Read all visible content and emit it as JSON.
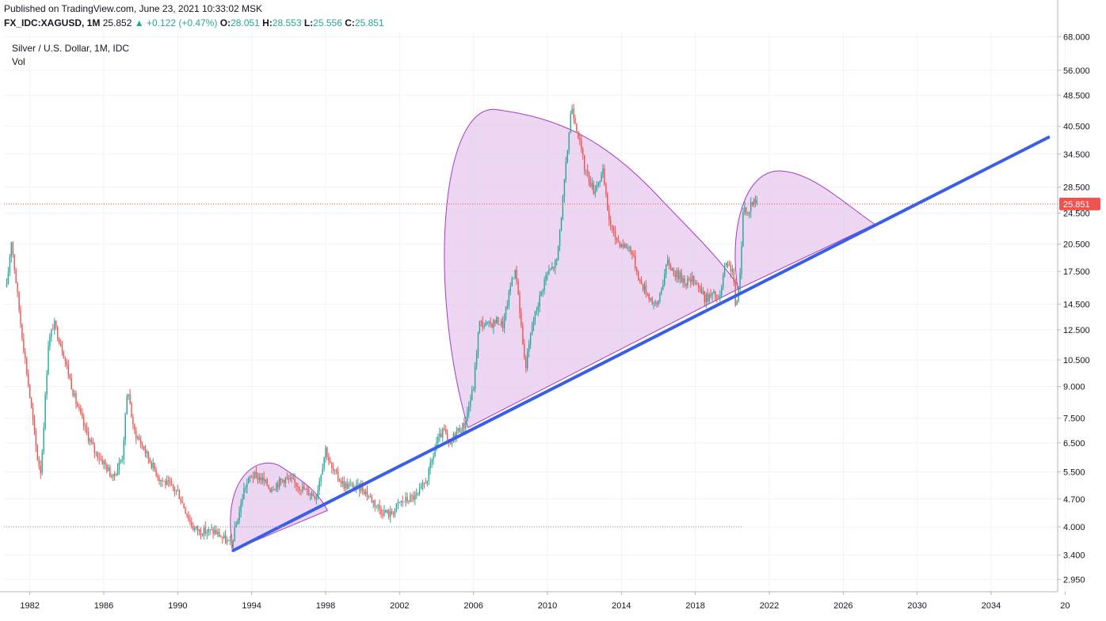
{
  "header": {
    "published": "Published on TradingView.com, June 23, 2021 10:33:02 MSK",
    "symbol": "FX_IDC:XAGUSD, 1M",
    "last": "25.852",
    "change": "+0.122 (+0.47%)",
    "o_label": "O:",
    "o_value": "28.051",
    "h_label": "H:",
    "h_value": "28.553",
    "l_label": "L:",
    "l_value": "25.556",
    "c_label": "C:",
    "c_value": "25.851"
  },
  "legend": {
    "title": "Silver / U.S. Dollar, 1M, IDC",
    "volume": "Vol"
  },
  "colors": {
    "up": "#26a69a",
    "down": "#ef5350",
    "trendline": "#3a5ee8",
    "pattern_fill": "#e6c8ec",
    "pattern_stroke": "#a33cc1",
    "price_label_bg": "#ef5350"
  },
  "chart_data": {
    "type": "candlestick",
    "scale": "log",
    "ylim": [
      2.75,
      70
    ],
    "xlim": [
      1980.6,
      2037.6
    ],
    "y_ticks": [
      "68.000",
      "56.000",
      "48.500",
      "40.500",
      "34.500",
      "28.500",
      "24.500",
      "20.500",
      "17.500",
      "14.500",
      "12.500",
      "10.500",
      "9.000",
      "7.500",
      "6.500",
      "5.500",
      "4.700",
      "4.000",
      "3.400",
      "2.950"
    ],
    "x_ticks": [
      "1982",
      "1986",
      "1990",
      "1994",
      "1998",
      "2002",
      "2006",
      "2010",
      "2014",
      "2018",
      "2022",
      "2026",
      "2030",
      "2034",
      "20"
    ],
    "current_price": "25.851",
    "keypoints": [
      [
        1980.75,
        16.0
      ],
      [
        1981.0,
        21.0
      ],
      [
        1981.5,
        13.0
      ],
      [
        1982.0,
        8.5
      ],
      [
        1982.4,
        6.0
      ],
      [
        1982.6,
        5.5
      ],
      [
        1983.0,
        11.5
      ],
      [
        1983.3,
        13.0
      ],
      [
        1983.8,
        11.0
      ],
      [
        1984.4,
        8.5
      ],
      [
        1985.0,
        7.0
      ],
      [
        1985.5,
        6.2
      ],
      [
        1986.0,
        5.8
      ],
      [
        1986.5,
        5.3
      ],
      [
        1987.0,
        6.0
      ],
      [
        1987.3,
        9.0
      ],
      [
        1987.6,
        7.0
      ],
      [
        1988.0,
        6.5
      ],
      [
        1989.0,
        5.3
      ],
      [
        1990.0,
        4.9
      ],
      [
        1990.8,
        4.0
      ],
      [
        1991.2,
        3.9
      ],
      [
        1992.0,
        3.9
      ],
      [
        1992.9,
        3.6
      ],
      [
        1993.3,
        4.3
      ],
      [
        1993.6,
        5.0
      ],
      [
        1994.0,
        5.4
      ],
      [
        1994.5,
        5.3
      ],
      [
        1995.0,
        5.0
      ],
      [
        1995.8,
        5.3
      ],
      [
        1996.5,
        5.1
      ],
      [
        1997.0,
        4.9
      ],
      [
        1997.5,
        4.8
      ],
      [
        1998.0,
        6.3
      ],
      [
        1998.3,
        5.6
      ],
      [
        1999.0,
        5.1
      ],
      [
        2000.0,
        5.0
      ],
      [
        2001.0,
        4.4
      ],
      [
        2001.5,
        4.3
      ],
      [
        2002.0,
        4.6
      ],
      [
        2003.0,
        4.8
      ],
      [
        2003.5,
        5.3
      ],
      [
        2004.0,
        6.5
      ],
      [
        2004.4,
        7.0
      ],
      [
        2004.7,
        6.3
      ],
      [
        2005.0,
        6.9
      ],
      [
        2005.5,
        7.2
      ],
      [
        2006.0,
        9.0
      ],
      [
        2006.3,
        13.0
      ],
      [
        2006.8,
        12.8
      ],
      [
        2007.3,
        13.2
      ],
      [
        2007.6,
        12.8
      ],
      [
        2008.1,
        17.0
      ],
      [
        2008.3,
        17.5
      ],
      [
        2008.8,
        10.0
      ],
      [
        2009.2,
        13.0
      ],
      [
        2009.9,
        17.0
      ],
      [
        2010.5,
        18.5
      ],
      [
        2010.9,
        28.5
      ],
      [
        2011.3,
        46.0
      ],
      [
        2011.6,
        40.0
      ],
      [
        2012.0,
        32.0
      ],
      [
        2012.5,
        28.0
      ],
      [
        2013.0,
        31.0
      ],
      [
        2013.3,
        24.0
      ],
      [
        2013.6,
        21.5
      ],
      [
        2014.0,
        20.5
      ],
      [
        2014.5,
        20.0
      ],
      [
        2015.0,
        16.5
      ],
      [
        2015.5,
        15.2
      ],
      [
        2015.9,
        14.2
      ],
      [
        2016.5,
        18.5
      ],
      [
        2016.8,
        17.5
      ],
      [
        2017.5,
        16.5
      ],
      [
        2018.0,
        16.7
      ],
      [
        2018.5,
        15.0
      ],
      [
        2019.0,
        15.3
      ],
      [
        2019.3,
        14.8
      ],
      [
        2019.6,
        18.0
      ],
      [
        2020.0,
        17.8
      ],
      [
        2020.2,
        14.0
      ],
      [
        2020.4,
        16.5
      ],
      [
        2020.6,
        26.0
      ],
      [
        2020.8,
        24.0
      ],
      [
        2021.0,
        26.0
      ],
      [
        2021.4,
        26.5
      ]
    ],
    "trendline": {
      "from": [
        1993.0,
        3.49
      ],
      "to": [
        2037.1,
        38.0
      ]
    },
    "patterns": [
      "small cup (1993–1997)",
      "large cup (2005–2020)",
      "forming cup (2020–2027)"
    ]
  }
}
